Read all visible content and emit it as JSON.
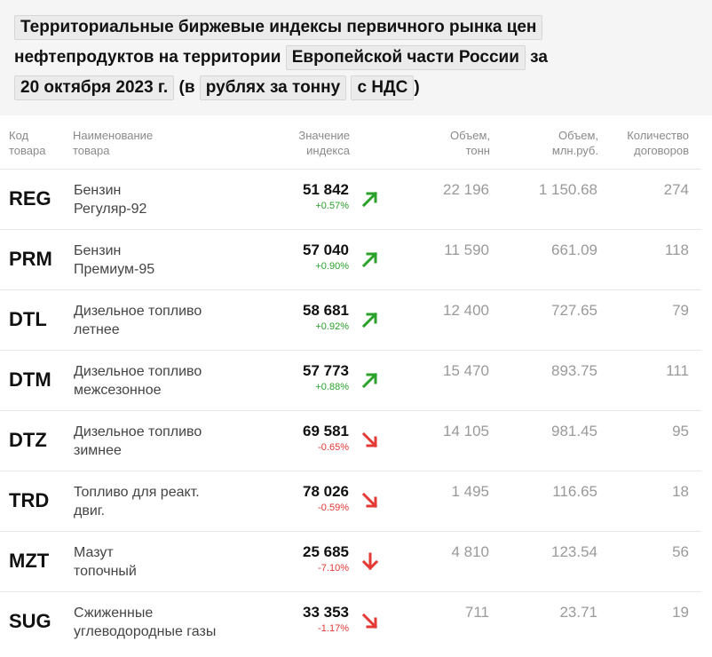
{
  "header": {
    "part1": "Территориальные биржевые индексы первичного рынка цен",
    "part2": "нефтепродуктов на территории",
    "region": "Европейской части России",
    "part3": "за",
    "date": "20 октября 2023 г.",
    "part4": "(в",
    "unit": "рублях за тонну",
    "vat": "с НДС",
    "close": ")"
  },
  "columns": {
    "code": [
      "Код",
      "товара"
    ],
    "name": [
      "Наименование",
      "товара"
    ],
    "value": [
      "Значение",
      "индекса"
    ],
    "vol_t": [
      "Объем,",
      "тонн"
    ],
    "vol_rub": [
      "Объем,",
      "млн.руб."
    ],
    "count": [
      "Количество",
      "договоров"
    ]
  },
  "rows": [
    {
      "code": "REG",
      "name1": "Бензин",
      "name2": "Регуляр-92",
      "value": "51 842",
      "change": "+0.57%",
      "dir": "up",
      "vol_t": "22 196",
      "vol_rub": "1 150.68",
      "count": "274"
    },
    {
      "code": "PRM",
      "name1": "Бензин",
      "name2": "Премиум-95",
      "value": "57 040",
      "change": "+0.90%",
      "dir": "up",
      "vol_t": "11 590",
      "vol_rub": "661.09",
      "count": "118"
    },
    {
      "code": "DTL",
      "name1": "Дизельное топливо",
      "name2": "летнее",
      "value": "58 681",
      "change": "+0.92%",
      "dir": "up",
      "vol_t": "12 400",
      "vol_rub": "727.65",
      "count": "79"
    },
    {
      "code": "DTM",
      "name1": "Дизельное топливо",
      "name2": "межсезонное",
      "value": "57 773",
      "change": "+0.88%",
      "dir": "up",
      "vol_t": "15 470",
      "vol_rub": "893.75",
      "count": "111"
    },
    {
      "code": "DTZ",
      "name1": "Дизельное топливо",
      "name2": "зимнее",
      "value": "69 581",
      "change": "-0.65%",
      "dir": "down",
      "vol_t": "14 105",
      "vol_rub": "981.45",
      "count": "95"
    },
    {
      "code": "TRD",
      "name1": "Топливо для реакт.",
      "name2": "двиг.",
      "value": "78 026",
      "change": "-0.59%",
      "dir": "down",
      "vol_t": "1 495",
      "vol_rub": "116.65",
      "count": "18"
    },
    {
      "code": "MZT",
      "name1": "Мазут",
      "name2": "топочный",
      "value": "25 685",
      "change": "-7.10%",
      "dir": "strong-down",
      "vol_t": "4 810",
      "vol_rub": "123.54",
      "count": "56"
    },
    {
      "code": "SUG",
      "name1": "Сжиженные",
      "name2": "углеводородные газы",
      "value": "33 353",
      "change": "-1.17%",
      "dir": "down",
      "vol_t": "711",
      "vol_rub": "23.71",
      "count": "19"
    }
  ],
  "colors": {
    "up": "#2aa22a",
    "down": "#e53935"
  }
}
